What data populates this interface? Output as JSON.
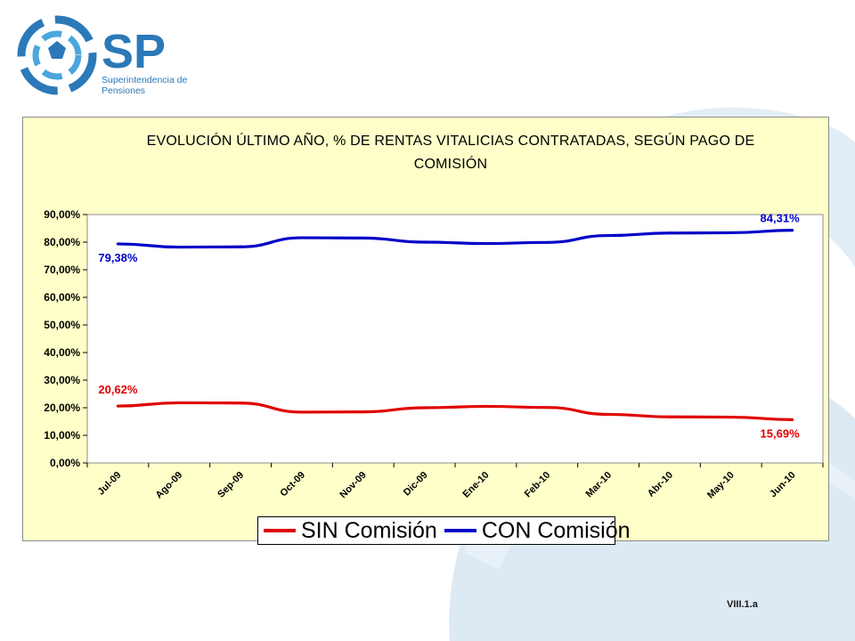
{
  "brand": {
    "logo_text": "SP",
    "logo_subtitle_line1": "Superintendencia de",
    "logo_subtitle_line2": "Pensiones",
    "primary_color": "#2b79b8",
    "accent_color": "#4aa6dc"
  },
  "slide_code": "VIII.1.a",
  "chart_data": {
    "type": "line",
    "title_line1": "EVOLUCIÓN ÚLTIMO AÑO, % DE RENTAS VITALICIAS CONTRATADAS, SEGÚN PAGO DE",
    "title_line2": "COMISIÓN",
    "xlabel": "",
    "ylabel": "",
    "categories": [
      "Jul-09",
      "Ago-09",
      "Sep-09",
      "Oct-09",
      "Nov-09",
      "Dic-09",
      "Ene-10",
      "Feb-10",
      "Mar-10",
      "Abr-10",
      "May-10",
      "Jun-10"
    ],
    "ylim": [
      0,
      90
    ],
    "y_ticks": [
      "0,00%",
      "10,00%",
      "20,00%",
      "30,00%",
      "40,00%",
      "50,00%",
      "60,00%",
      "70,00%",
      "80,00%",
      "90,00%"
    ],
    "grid": false,
    "legend_position": "bottom",
    "series": [
      {
        "name": "SIN Comisión",
        "color": "#e00000",
        "values": [
          20.62,
          21.8,
          21.7,
          18.4,
          18.5,
          20.0,
          20.5,
          20.1,
          17.6,
          16.7,
          16.6,
          15.69
        ],
        "first_label": "20,62%",
        "last_label": "15,69%"
      },
      {
        "name": "CON Comisión",
        "color": "#0000c8",
        "values": [
          79.38,
          78.2,
          78.3,
          81.6,
          81.5,
          80.0,
          79.5,
          79.9,
          82.4,
          83.3,
          83.4,
          84.31
        ],
        "first_label": "79,38%",
        "last_label": "84,31%"
      }
    ]
  }
}
